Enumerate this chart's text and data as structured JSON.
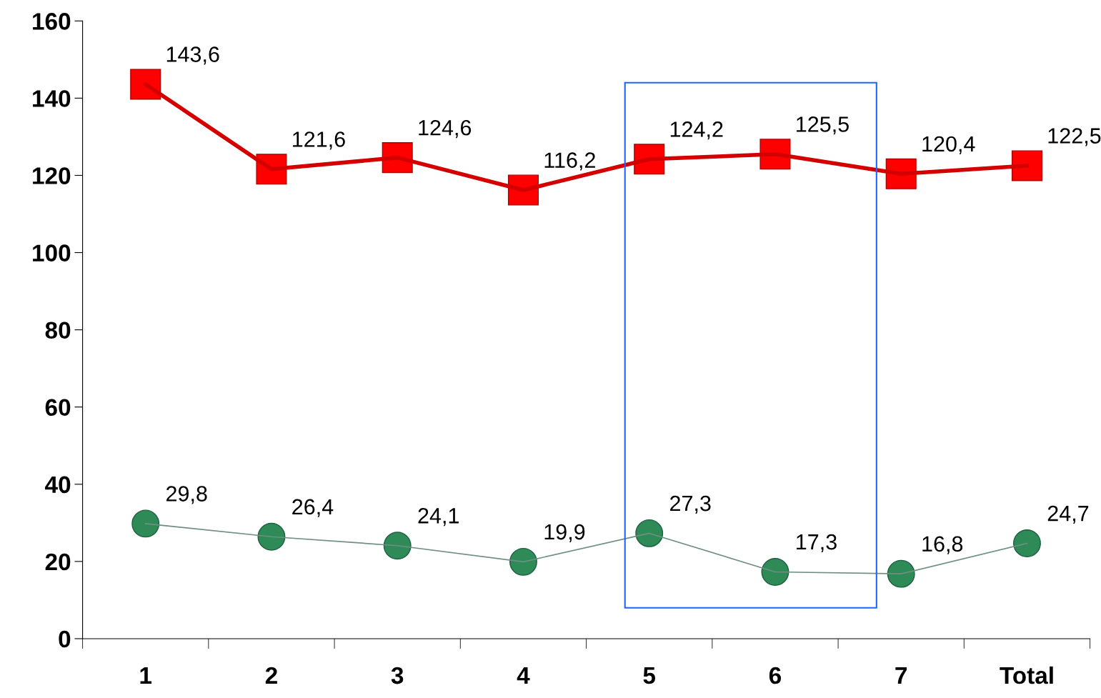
{
  "chart_data": {
    "type": "line",
    "categories": [
      "1",
      "2",
      "3",
      "4",
      "5",
      "6",
      "7",
      "Total"
    ],
    "series": [
      {
        "color": "#ff0000",
        "marker": "square",
        "values": [
          143.6,
          121.6,
          124.6,
          116.2,
          124.2,
          125.5,
          120.4,
          122.5
        ],
        "value_labels": [
          "143,6",
          "121,6",
          "124,6",
          "116,2",
          "124,2",
          "125,5",
          "120,4",
          "122,5"
        ]
      },
      {
        "color": "#2e8b57",
        "marker": "circle",
        "values": [
          29.8,
          26.4,
          24.1,
          19.9,
          27.3,
          17.3,
          16.8,
          24.7
        ],
        "value_labels": [
          "29,8",
          "26,4",
          "24,1",
          "19,9",
          "27,3",
          "17,3",
          "16,8",
          "24,7"
        ]
      }
    ],
    "ylim": [
      0,
      160
    ],
    "yticks": [
      0,
      20,
      40,
      60,
      80,
      100,
      120,
      140,
      160
    ],
    "grid": false,
    "legend": false,
    "line_style": "solid"
  }
}
